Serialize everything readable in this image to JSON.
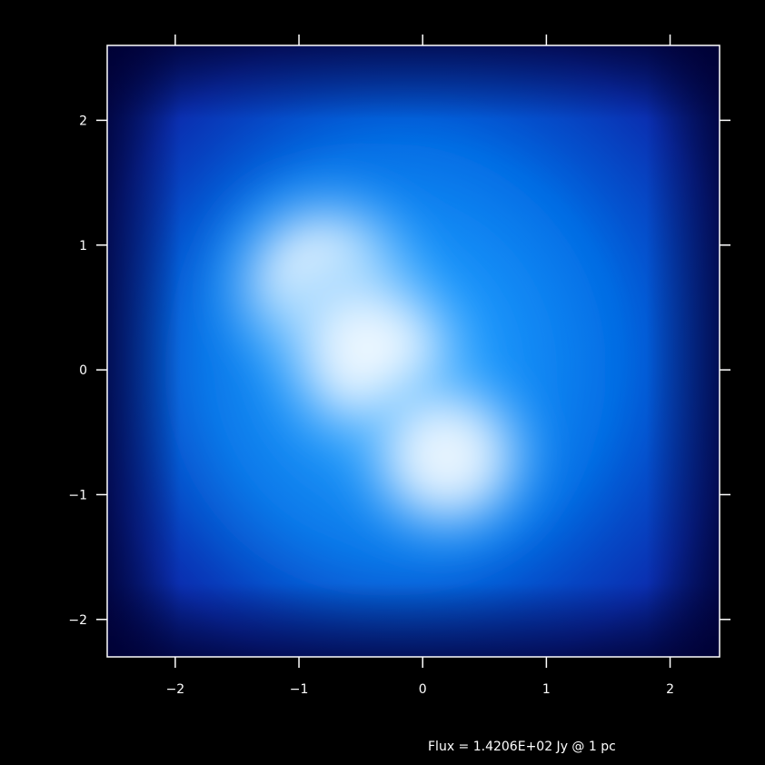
{
  "chart_data": {
    "type": "heatmap",
    "title": "",
    "xlabel": "",
    "ylabel": "",
    "xlim": [
      -2.55,
      2.4
    ],
    "ylim": [
      -2.3,
      2.6
    ],
    "x_ticks": [
      -2,
      -1,
      0,
      1,
      2
    ],
    "x_tick_labels": [
      "−2",
      "−1",
      "0",
      "1",
      "2"
    ],
    "y_ticks": [
      -2,
      -1,
      0,
      1,
      2
    ],
    "y_tick_labels": [
      "−2",
      "−1",
      "0",
      "1",
      "2"
    ],
    "colormap": [
      "#000044",
      "#0022aa",
      "#0066e0",
      "#1aa0ff",
      "#9fd4ff",
      "#ffffff"
    ],
    "background_color": "#000000",
    "emission_peaks": [
      {
        "x": -0.8,
        "y": 0.7,
        "intensity": 1.0
      },
      {
        "x": -0.4,
        "y": 0.1,
        "intensity": 1.0
      },
      {
        "x": 0.2,
        "y": -0.7,
        "intensity": 0.9
      }
    ],
    "annotation": "Flux = 1.4206E+02 Jy @ 1 pc"
  }
}
